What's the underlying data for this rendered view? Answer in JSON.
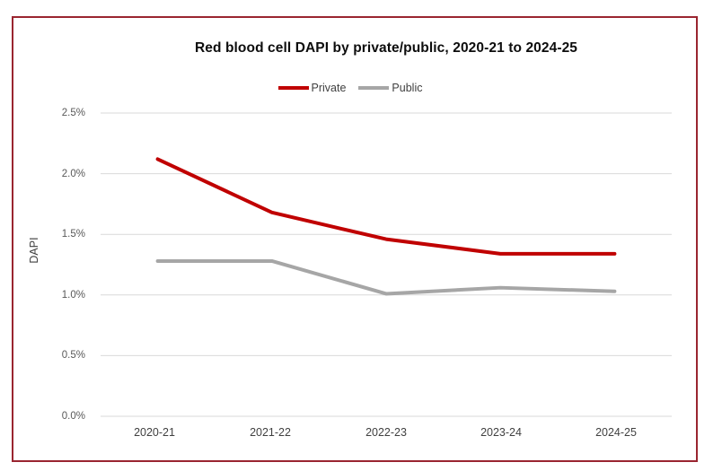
{
  "chart_data": {
    "type": "line",
    "title": "Red blood cell DAPI by private/public, 2020-21 to 2024-25",
    "xlabel": "",
    "ylabel": "DAPI",
    "categories": [
      "2020-21",
      "2021-22",
      "2022-23",
      "2023-24",
      "2024-25"
    ],
    "series": [
      {
        "name": "Private",
        "color": "#C00000",
        "values": [
          2.12,
          1.68,
          1.46,
          1.34,
          1.34
        ]
      },
      {
        "name": "Public",
        "color": "#A6A6A6",
        "values": [
          1.28,
          1.28,
          1.01,
          1.06,
          1.03
        ]
      }
    ],
    "y_ticks": [
      "2.5%",
      "2.0%",
      "1.5%",
      "1.0%",
      "0.5%",
      "0.0%"
    ],
    "ylim": [
      0,
      2.5
    ],
    "grid": true,
    "legend_position": "top",
    "colors": {
      "gridline": "#D9D9D9",
      "frame_border": "#9A2530",
      "private_line": "#C00000",
      "public_line": "#A6A6A6"
    }
  }
}
